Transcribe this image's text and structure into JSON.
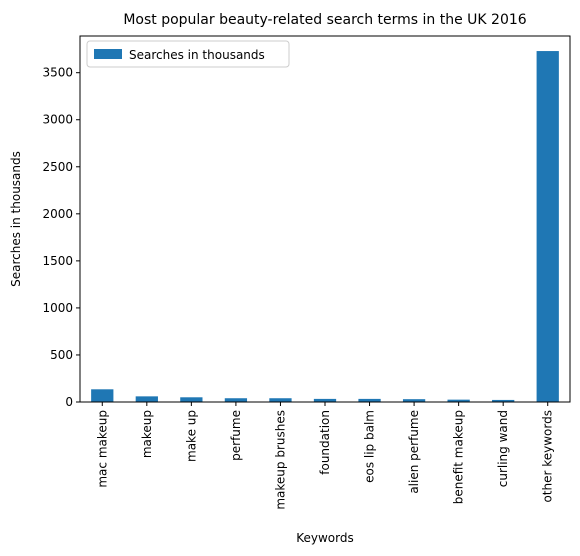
{
  "chart_data": {
    "type": "bar",
    "title": "Most popular beauty-related search terms in the UK 2016",
    "xlabel": "Keywords",
    "ylabel": "Searches in thousands",
    "categories": [
      "mac makeup",
      "makeup",
      "make up",
      "perfume",
      "makeup brushes",
      "foundation",
      "eos lip balm",
      "alien perfume",
      "benefit makeup",
      "curling wand",
      "other keywords"
    ],
    "series": [
      {
        "name": "Searches in thousands",
        "color": "#1f77b4",
        "values": [
          135,
          60,
          50,
          40,
          40,
          33,
          33,
          30,
          25,
          22,
          3730
        ]
      }
    ],
    "ylim": [
      0,
      3890
    ],
    "yticks": [
      0,
      500,
      1000,
      1500,
      2000,
      2500,
      3000,
      3500
    ],
    "grid": false,
    "legend_position": "top-left"
  }
}
